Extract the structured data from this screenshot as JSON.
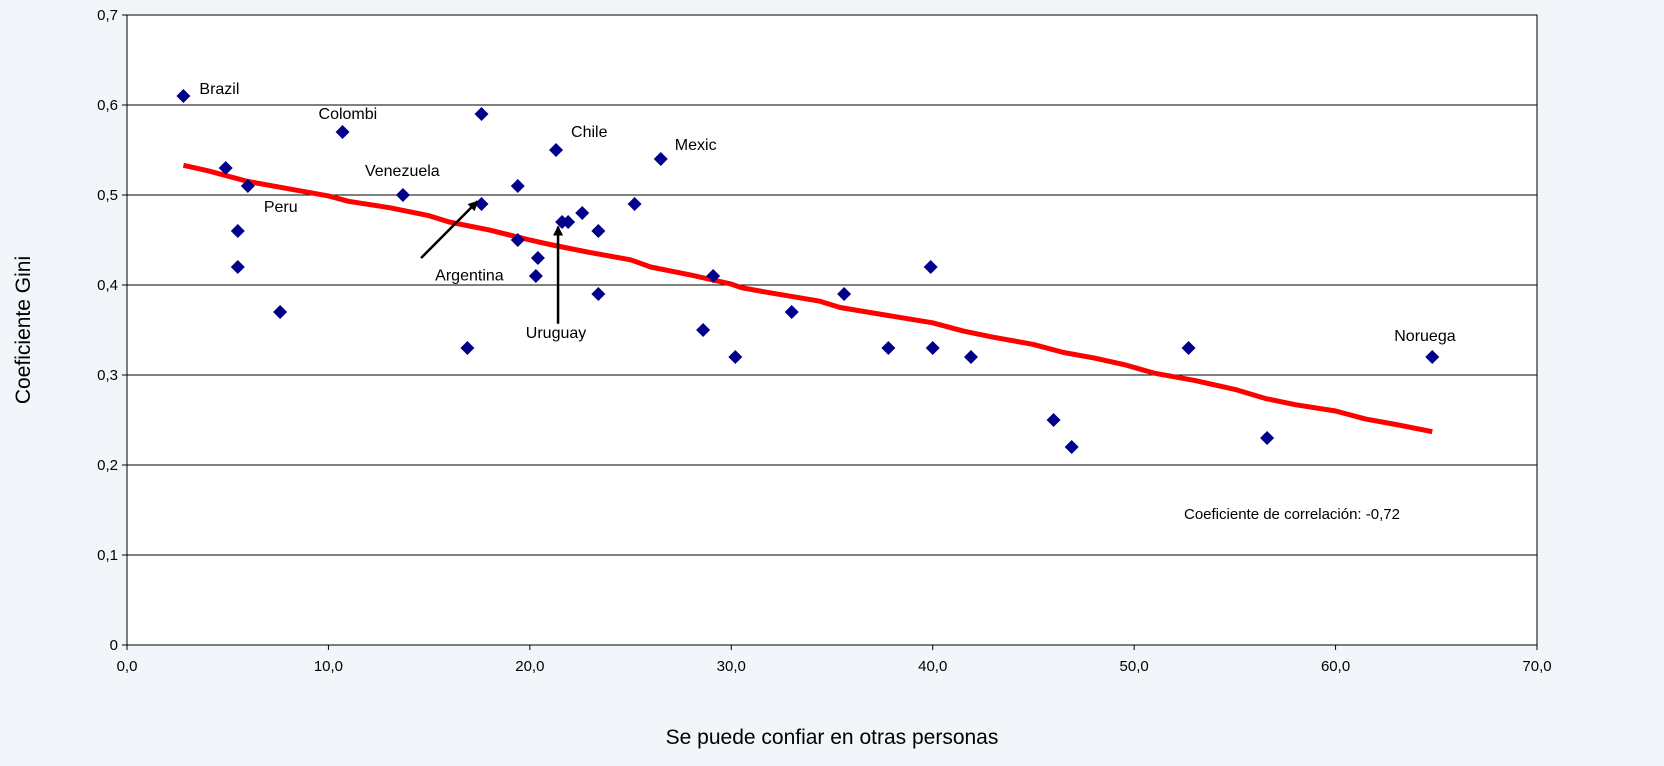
{
  "chart_data": {
    "type": "scatter",
    "xlabel": "Se puede confiar en otras personas",
    "ylabel": "Coeficiente Gini",
    "xlim": [
      0,
      70
    ],
    "ylim": [
      0,
      0.7
    ],
    "x_ticks": [
      "0,0",
      "10,0",
      "20,0",
      "30,0",
      "40,0",
      "50,0",
      "60,0",
      "70,0"
    ],
    "y_ticks": [
      "0",
      "0,1",
      "0,2",
      "0,3",
      "0,4",
      "0,5",
      "0,6",
      "0,7"
    ],
    "grid": "horizontal",
    "marker_color": "#00008b",
    "trend_color": "#ff0000",
    "points": [
      {
        "x": 2.8,
        "y": 0.61,
        "label": "Brazil"
      },
      {
        "x": 4.9,
        "y": 0.53
      },
      {
        "x": 6.0,
        "y": 0.51,
        "label": "Peru"
      },
      {
        "x": 5.5,
        "y": 0.46
      },
      {
        "x": 5.5,
        "y": 0.42
      },
      {
        "x": 7.6,
        "y": 0.37
      },
      {
        "x": 10.7,
        "y": 0.57,
        "label": "Colombi"
      },
      {
        "x": 13.7,
        "y": 0.5,
        "label": "Venezuela"
      },
      {
        "x": 16.9,
        "y": 0.33
      },
      {
        "x": 17.6,
        "y": 0.59
      },
      {
        "x": 17.6,
        "y": 0.49,
        "label": "Argentina"
      },
      {
        "x": 19.4,
        "y": 0.51
      },
      {
        "x": 19.4,
        "y": 0.45
      },
      {
        "x": 20.4,
        "y": 0.43
      },
      {
        "x": 20.3,
        "y": 0.41
      },
      {
        "x": 21.3,
        "y": 0.55,
        "label": "Chile"
      },
      {
        "x": 21.6,
        "y": 0.47,
        "label": "Uruguay"
      },
      {
        "x": 21.9,
        "y": 0.47
      },
      {
        "x": 22.6,
        "y": 0.48
      },
      {
        "x": 23.4,
        "y": 0.46
      },
      {
        "x": 23.4,
        "y": 0.39
      },
      {
        "x": 25.2,
        "y": 0.49
      },
      {
        "x": 26.5,
        "y": 0.54,
        "label": "Mexic"
      },
      {
        "x": 28.6,
        "y": 0.35
      },
      {
        "x": 29.1,
        "y": 0.41
      },
      {
        "x": 30.2,
        "y": 0.32
      },
      {
        "x": 33.0,
        "y": 0.37
      },
      {
        "x": 35.6,
        "y": 0.39
      },
      {
        "x": 37.8,
        "y": 0.33
      },
      {
        "x": 39.9,
        "y": 0.42
      },
      {
        "x": 40.0,
        "y": 0.33
      },
      {
        "x": 41.9,
        "y": 0.32
      },
      {
        "x": 46.0,
        "y": 0.25
      },
      {
        "x": 46.9,
        "y": 0.22
      },
      {
        "x": 52.7,
        "y": 0.33
      },
      {
        "x": 56.6,
        "y": 0.23
      },
      {
        "x": 64.8,
        "y": 0.32,
        "label": "Noruega"
      }
    ],
    "trend": [
      {
        "x": 2.8,
        "y": 0.533
      },
      {
        "x": 4.0,
        "y": 0.527
      },
      {
        "x": 6.0,
        "y": 0.515
      },
      {
        "x": 8.0,
        "y": 0.507
      },
      {
        "x": 10.0,
        "y": 0.499
      },
      {
        "x": 11.0,
        "y": 0.493
      },
      {
        "x": 13.0,
        "y": 0.486
      },
      {
        "x": 15.0,
        "y": 0.477
      },
      {
        "x": 16.0,
        "y": 0.47
      },
      {
        "x": 18.0,
        "y": 0.461
      },
      {
        "x": 20.0,
        "y": 0.45
      },
      {
        "x": 21.0,
        "y": 0.445
      },
      {
        "x": 23.0,
        "y": 0.436
      },
      {
        "x": 25.0,
        "y": 0.428
      },
      {
        "x": 26.0,
        "y": 0.42
      },
      {
        "x": 28.0,
        "y": 0.411
      },
      {
        "x": 30.0,
        "y": 0.401
      },
      {
        "x": 30.5,
        "y": 0.397
      },
      {
        "x": 32.0,
        "y": 0.391
      },
      {
        "x": 34.4,
        "y": 0.382
      },
      {
        "x": 35.4,
        "y": 0.375
      },
      {
        "x": 37.0,
        "y": 0.369
      },
      {
        "x": 40.0,
        "y": 0.358
      },
      {
        "x": 41.5,
        "y": 0.349
      },
      {
        "x": 43.0,
        "y": 0.342
      },
      {
        "x": 45.0,
        "y": 0.334
      },
      {
        "x": 46.5,
        "y": 0.325
      },
      {
        "x": 48.0,
        "y": 0.319
      },
      {
        "x": 49.6,
        "y": 0.311
      },
      {
        "x": 51.0,
        "y": 0.302
      },
      {
        "x": 53.0,
        "y": 0.294
      },
      {
        "x": 55.0,
        "y": 0.284
      },
      {
        "x": 56.5,
        "y": 0.274
      },
      {
        "x": 58.0,
        "y": 0.267
      },
      {
        "x": 60.0,
        "y": 0.26
      },
      {
        "x": 61.5,
        "y": 0.251
      },
      {
        "x": 63.0,
        "y": 0.245
      },
      {
        "x": 64.8,
        "y": 0.237
      }
    ],
    "annotations": [
      {
        "text": "Argentina",
        "text_x": 17.0,
        "text_y": 0.405,
        "arrow_from": [
          14.6,
          0.43
        ],
        "arrow_to": [
          17.4,
          0.493
        ]
      },
      {
        "text": "Uruguay",
        "text_x": 21.3,
        "text_y": 0.341,
        "arrow_from": [
          21.4,
          0.357
        ],
        "arrow_to": [
          21.4,
          0.465
        ]
      }
    ],
    "correlation_note": "Coeficiente de correlación: -0,72"
  }
}
